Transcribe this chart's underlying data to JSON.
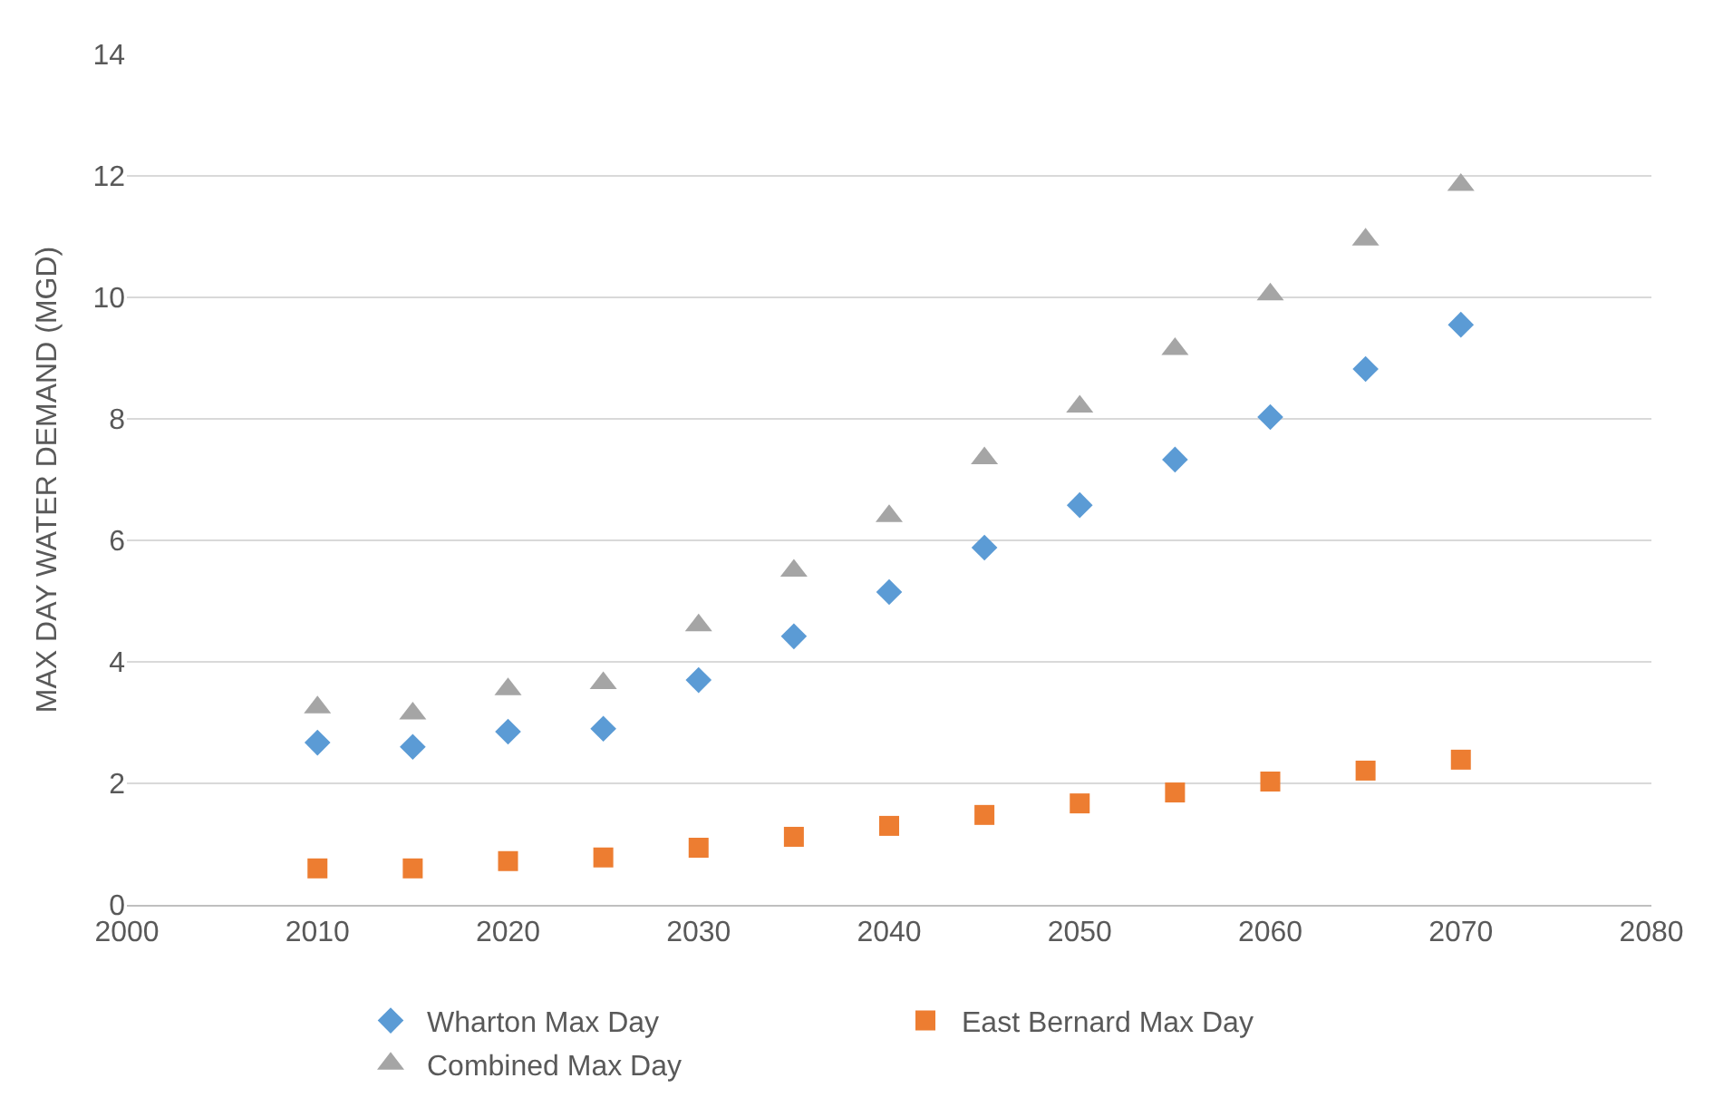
{
  "chart_data": {
    "type": "scatter",
    "ylabel": "MAX DAY WATER DEMAND (MGD)",
    "x": [
      2010,
      2015,
      2020,
      2025,
      2030,
      2035,
      2040,
      2045,
      2050,
      2055,
      2060,
      2065,
      2070
    ],
    "series": [
      {
        "name": "Wharton Max Day",
        "color": "#5b9bd5",
        "marker": "diamond",
        "values": [
          2.67,
          2.6,
          2.85,
          2.9,
          3.7,
          4.42,
          5.15,
          5.88,
          6.58,
          7.33,
          8.03,
          8.82,
          9.55
        ]
      },
      {
        "name": "East Bernard Max Day",
        "color": "#ed7d31",
        "marker": "square",
        "values": [
          0.6,
          0.6,
          0.72,
          0.78,
          0.94,
          1.12,
          1.3,
          1.48,
          1.67,
          1.85,
          2.03,
          2.21,
          2.39
        ]
      },
      {
        "name": "Combined Max Day",
        "color": "#a5a5a5",
        "marker": "triangle",
        "values": [
          3.25,
          3.15,
          3.55,
          3.65,
          4.6,
          5.5,
          6.4,
          7.35,
          8.2,
          9.15,
          10.05,
          10.95,
          11.85
        ]
      }
    ],
    "xlim": [
      2000,
      2080
    ],
    "xticks": [
      2000,
      2010,
      2020,
      2030,
      2040,
      2050,
      2060,
      2070,
      2080
    ],
    "ylim": [
      0,
      14
    ],
    "yticks": [
      0,
      2,
      4,
      6,
      8,
      10,
      12,
      14
    ],
    "grid": "y",
    "legend": "bottom"
  }
}
